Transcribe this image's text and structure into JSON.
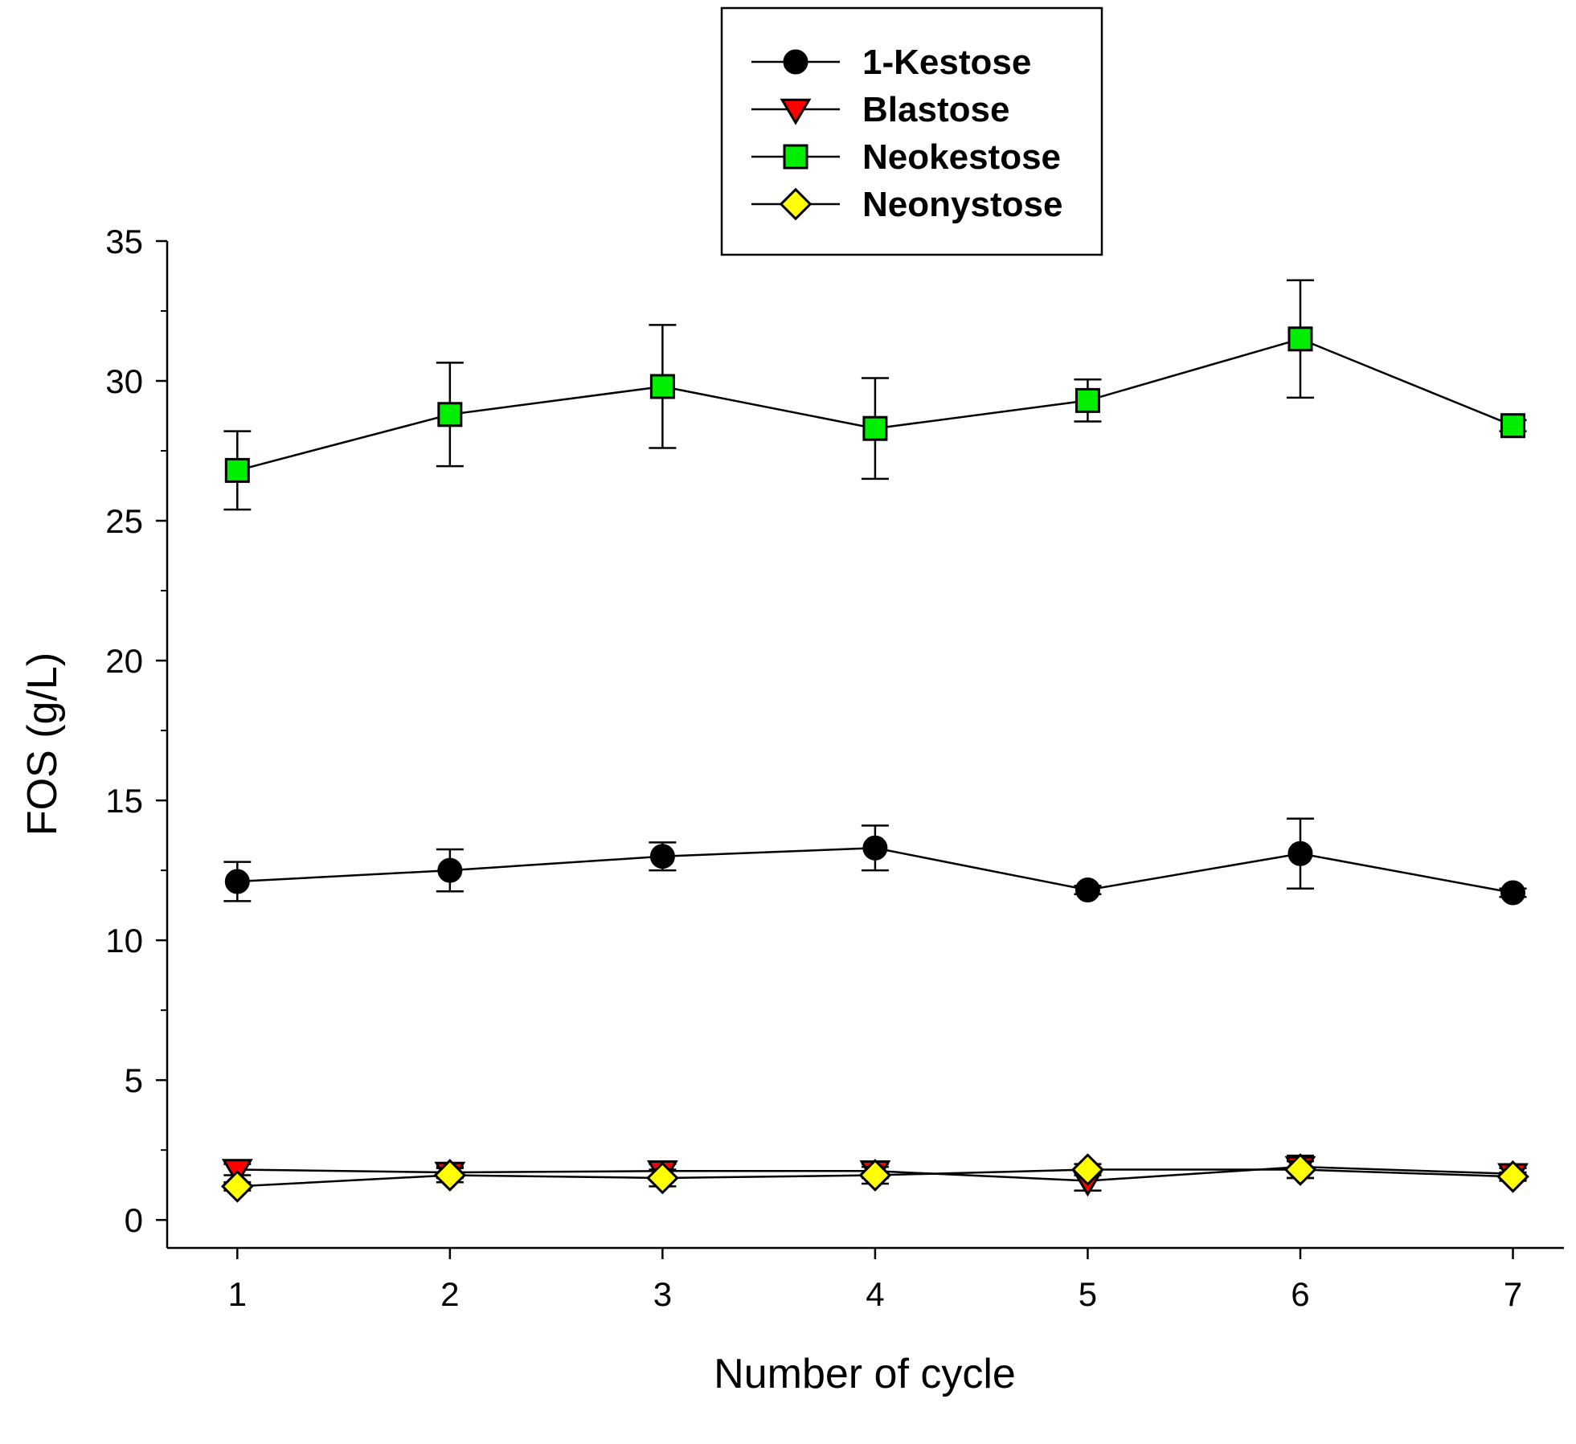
{
  "chart_data": {
    "type": "line",
    "xlabel": "Number of cycle",
    "ylabel": "FOS (g/L)",
    "x": [
      1,
      2,
      3,
      4,
      5,
      6,
      7
    ],
    "xlim": [
      0.67,
      7.24
    ],
    "ylim": [
      -1,
      35
    ],
    "yticks": [
      0,
      5,
      10,
      15,
      20,
      25,
      30,
      35
    ],
    "xticks": [
      1,
      2,
      3,
      4,
      5,
      6,
      7
    ],
    "legend_position": "top-center",
    "series": [
      {
        "name": "1-Kestose",
        "marker": "circle",
        "color": "#000000",
        "values": [
          12.1,
          12.5,
          13.0,
          13.3,
          11.8,
          13.1,
          11.7
        ],
        "errors": [
          0.7,
          0.75,
          0.5,
          0.8,
          0.15,
          1.25,
          0.15
        ]
      },
      {
        "name": "Blastose",
        "marker": "triangle-down",
        "color": "#ff0000",
        "values": [
          1.8,
          1.7,
          1.75,
          1.75,
          1.4,
          1.9,
          1.65
        ],
        "errors": [
          0.2,
          0.2,
          0.25,
          0.25,
          0.35,
          0.4,
          0.2
        ]
      },
      {
        "name": "Neokestose",
        "marker": "square",
        "color": "#00ee00",
        "values": [
          26.8,
          28.8,
          29.8,
          28.3,
          29.3,
          31.5,
          28.4
        ],
        "errors": [
          1.4,
          1.85,
          2.2,
          1.8,
          0.75,
          2.1,
          0.2
        ]
      },
      {
        "name": "Neonystose",
        "marker": "diamond",
        "color": "#ffff00",
        "values": [
          1.2,
          1.6,
          1.5,
          1.6,
          1.8,
          1.8,
          1.55
        ],
        "errors": [
          0.15,
          0.25,
          0.3,
          0.3,
          0.2,
          0.3,
          0.15
        ]
      }
    ]
  }
}
